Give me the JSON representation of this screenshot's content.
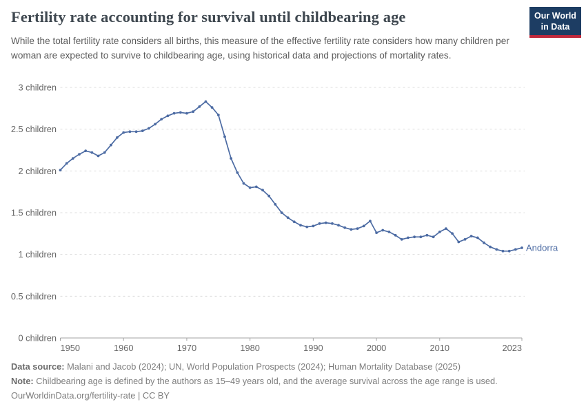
{
  "header": {
    "title": "Fertility rate accounting for survival until childbearing age",
    "subtitle": "While the total fertility rate considers all births, this measure of the effective fertility rate considers how many children per woman are expected to survive to childbearing age, using historical data and projections of mortality rates.",
    "logo": {
      "line1": "Our World",
      "line2": "in Data",
      "bg_color": "#1d3d63",
      "accent_color": "#c0293c"
    }
  },
  "chart_data": {
    "type": "line",
    "title": "Fertility rate accounting for survival until childbearing age",
    "entity": "Andorra",
    "line_color": "#4c6ba3",
    "grid": true,
    "gridline_color": "#dcdcdc",
    "axis_color": "#a3a3a3",
    "xlim": [
      1950,
      2023
    ],
    "ylim": [
      0,
      3
    ],
    "xticks": [
      1950,
      1960,
      1970,
      1980,
      1990,
      2000,
      2010,
      2023
    ],
    "yticks": [
      {
        "value": 0,
        "label": "0 children"
      },
      {
        "value": 0.5,
        "label": "0.5 children"
      },
      {
        "value": 1,
        "label": "1 children"
      },
      {
        "value": 1.5,
        "label": "1.5 children"
      },
      {
        "value": 2,
        "label": "2 children"
      },
      {
        "value": 2.5,
        "label": "2.5 children"
      },
      {
        "value": 3,
        "label": "3 children"
      }
    ],
    "x": [
      1950,
      1951,
      1952,
      1953,
      1954,
      1955,
      1956,
      1957,
      1958,
      1959,
      1960,
      1961,
      1962,
      1963,
      1964,
      1965,
      1966,
      1967,
      1968,
      1969,
      1970,
      1971,
      1972,
      1973,
      1974,
      1975,
      1976,
      1977,
      1978,
      1979,
      1980,
      1981,
      1982,
      1983,
      1984,
      1985,
      1986,
      1987,
      1988,
      1989,
      1990,
      1991,
      1992,
      1993,
      1994,
      1995,
      1996,
      1997,
      1998,
      1999,
      2000,
      2001,
      2002,
      2003,
      2004,
      2005,
      2006,
      2007,
      2008,
      2009,
      2010,
      2011,
      2012,
      2013,
      2014,
      2015,
      2016,
      2017,
      2018,
      2019,
      2020,
      2021,
      2022,
      2023
    ],
    "values": [
      2.01,
      2.09,
      2.15,
      2.2,
      2.24,
      2.22,
      2.18,
      2.22,
      2.31,
      2.4,
      2.46,
      2.47,
      2.47,
      2.48,
      2.51,
      2.56,
      2.62,
      2.66,
      2.69,
      2.7,
      2.69,
      2.71,
      2.77,
      2.83,
      2.76,
      2.67,
      2.41,
      2.15,
      1.98,
      1.85,
      1.8,
      1.81,
      1.77,
      1.7,
      1.6,
      1.5,
      1.44,
      1.39,
      1.35,
      1.33,
      1.34,
      1.37,
      1.38,
      1.37,
      1.35,
      1.32,
      1.3,
      1.31,
      1.34,
      1.4,
      1.26,
      1.29,
      1.27,
      1.23,
      1.18,
      1.2,
      1.21,
      1.21,
      1.23,
      1.21,
      1.27,
      1.31,
      1.25,
      1.15,
      1.18,
      1.22,
      1.2,
      1.14,
      1.09,
      1.06,
      1.04,
      1.04,
      1.06,
      1.08
    ]
  },
  "footer": {
    "datasource_label": "Data source:",
    "datasource_text": " Malani and Jacob (2024); UN, World Population Prospects (2024); Human Mortality Database (2025)",
    "note_label": "Note:",
    "note_text": " Childbearing age is defined by the authors as 15–49 years old, and the average survival across the age range is used.",
    "url_line": "OurWorldinData.org/fertility-rate | CC BY"
  }
}
